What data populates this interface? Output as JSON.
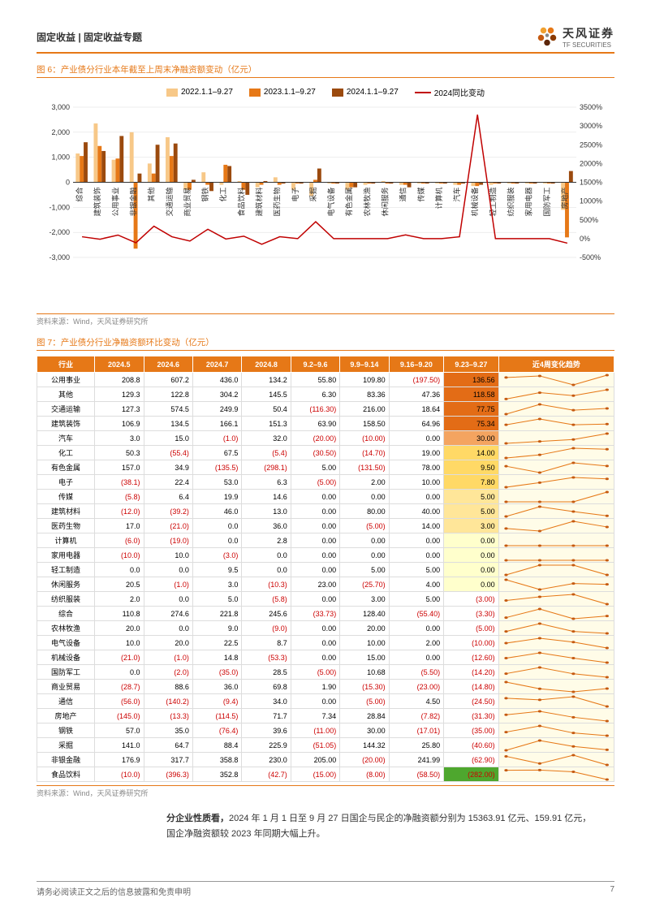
{
  "header": {
    "category": "固定收益 | 固定收益专题",
    "company_name": "天风证券",
    "company_sub": "TF SECURITIES"
  },
  "fig6": {
    "title": "图 6：产业债分行业本年截至上周末净融资额变动（亿元）",
    "source": "资料来源：Wind，天风证券研究所",
    "type": "bar-line-combo",
    "legend": [
      {
        "label": "2022.1.1–9.27",
        "color": "#f7c888"
      },
      {
        "label": "2023.1.1–9.27",
        "color": "#e67817"
      },
      {
        "label": "2024.1.1–9.27",
        "color": "#9b4a0e"
      },
      {
        "label": "2024同比变动",
        "color": "#c00000",
        "type": "line"
      }
    ],
    "y1_ticks": [
      -3000,
      -2000,
      -1000,
      0,
      1000,
      2000,
      3000
    ],
    "y2_ticks": [
      "-500%",
      "0%",
      "500%",
      "1000%",
      "1500%",
      "2000%",
      "2500%",
      "3000%",
      "3500%"
    ],
    "categories": [
      "综合",
      "建筑装饰",
      "公用事业",
      "非银金融",
      "其他",
      "交通运输",
      "商业贸易",
      "钢铁",
      "化工",
      "食品饮料",
      "建筑材料",
      "医药生物",
      "电子",
      "采掘",
      "电气设备",
      "有色金属",
      "农林牧渔",
      "休闲服务",
      "通信",
      "传媒",
      "计算机",
      "汽车",
      "机械设备",
      "轻工制造",
      "纺织服装",
      "家用电器",
      "国防军工",
      "房地产"
    ],
    "bars_2022": [
      1150,
      2350,
      900,
      2000,
      750,
      1800,
      -300,
      400,
      -100,
      50,
      -200,
      200,
      -300,
      -550,
      -50,
      -300,
      -100,
      50,
      -100,
      -50,
      -50,
      -100,
      -150,
      -100,
      -50,
      -50,
      -50,
      -1100
    ],
    "bars_2023": [
      1050,
      1450,
      950,
      -2650,
      350,
      1050,
      -300,
      -100,
      700,
      -300,
      -100,
      -100,
      -50,
      100,
      -50,
      -200,
      -50,
      -50,
      -100,
      -50,
      -50,
      -100,
      -150,
      -50,
      -50,
      -50,
      -50,
      -2200
    ],
    "bars_2024": [
      1600,
      1250,
      1850,
      350,
      1500,
      1550,
      100,
      -350,
      650,
      -500,
      50,
      -50,
      -50,
      550,
      -50,
      -200,
      -50,
      -50,
      -200,
      -50,
      -50,
      -50,
      -100,
      -50,
      -50,
      -50,
      -50,
      450
    ],
    "line_yoy_pct": [
      50,
      -15,
      95,
      -110,
      330,
      50,
      -65,
      250,
      -10,
      65,
      -150,
      50,
      0,
      450,
      0,
      0,
      0,
      0,
      100,
      0,
      0,
      50,
      3300,
      0,
      0,
      0,
      0,
      -120
    ],
    "y1_min": -3000,
    "y1_max": 3000,
    "y2_min": -500,
    "y2_max": 3500,
    "background_color": "#ffffff",
    "grid_color": "#dddddd",
    "bar_width": 0.22
  },
  "fig7": {
    "title": "图 7：产业债分行业净融资额环比变动（亿元）",
    "source": "资料来源：Wind，天风证券研究所",
    "columns": [
      "行业",
      "2024.5",
      "2024.6",
      "2024.7",
      "2024.8",
      "9.2–9.6",
      "9.9–9.14",
      "9.16–9.20",
      "9.23–9.27",
      "近4周变化趋势"
    ],
    "col_widths": [
      "10%",
      "8.5%",
      "8.5%",
      "8.5%",
      "8.5%",
      "8.5%",
      "8.5%",
      "9.5%",
      "9.5%",
      "20%"
    ],
    "last_col_gradient": {
      "max_color": "#e36c16",
      "mid_color": "#ffe699",
      "zero_color": "#ffffcc",
      "neg_color": "#ffffff",
      "min_color": "#4ea72e"
    },
    "spark_style": {
      "line_color": "#e67817",
      "point_color": "#c55a11",
      "bg_color": "#fffce8"
    },
    "rows": [
      {
        "name": "公用事业",
        "v": [
          208.8,
          607.2,
          436.0,
          134.2,
          55.8,
          109.8,
          -197.5,
          136.56
        ],
        "spark": [
          55.8,
          109.8,
          -197.5,
          136.56
        ]
      },
      {
        "name": "其他",
        "v": [
          129.3,
          122.8,
          304.2,
          145.5,
          6.3,
          83.36,
          47.36,
          118.58
        ],
        "spark": [
          6.3,
          83.36,
          47.36,
          118.58
        ]
      },
      {
        "name": "交通运输",
        "v": [
          127.3,
          574.5,
          249.9,
          50.4,
          -116.3,
          216.0,
          18.64,
          77.75
        ],
        "spark": [
          -116.3,
          216.0,
          18.64,
          77.75
        ]
      },
      {
        "name": "建筑装饰",
        "v": [
          106.9,
          134.5,
          166.1,
          151.3,
          63.9,
          158.5,
          64.96,
          75.34
        ],
        "spark": [
          63.9,
          158.5,
          64.96,
          75.34
        ]
      },
      {
        "name": "汽车",
        "v": [
          3.0,
          15.0,
          -1.0,
          32.0,
          -20.0,
          -10.0,
          0.0,
          30.0
        ],
        "spark": [
          -20.0,
          -10.0,
          0.0,
          30.0
        ]
      },
      {
        "name": "化工",
        "v": [
          50.3,
          -55.4,
          67.5,
          -5.4,
          -30.5,
          -14.7,
          19.0,
          14.0
        ],
        "spark": [
          -30.5,
          -14.7,
          19.0,
          14.0
        ]
      },
      {
        "name": "有色金属",
        "v": [
          157.0,
          34.9,
          -135.5,
          -298.1,
          5.0,
          -131.5,
          78.0,
          9.5
        ],
        "spark": [
          5.0,
          -131.5,
          78.0,
          9.5
        ]
      },
      {
        "name": "电子",
        "v": [
          -38.1,
          22.4,
          53.0,
          6.3,
          -5.0,
          2.0,
          10.0,
          7.8
        ],
        "spark": [
          -5.0,
          2.0,
          10.0,
          7.8
        ]
      },
      {
        "name": "传媒",
        "v": [
          -5.8,
          6.4,
          19.9,
          14.6,
          0.0,
          0.0,
          0.0,
          5.0
        ],
        "spark": [
          0.0,
          0.0,
          0.0,
          5.0
        ]
      },
      {
        "name": "建筑材料",
        "v": [
          -12.0,
          -39.2,
          46.0,
          13.0,
          0.0,
          80.0,
          40.0,
          5.0
        ],
        "spark": [
          0.0,
          80.0,
          40.0,
          5.0
        ]
      },
      {
        "name": "医药生物",
        "v": [
          17.0,
          -21.0,
          0.0,
          36.0,
          0.0,
          -5.0,
          14.0,
          3.0
        ],
        "spark": [
          0.0,
          -5.0,
          14.0,
          3.0
        ]
      },
      {
        "name": "计算机",
        "v": [
          -6.0,
          -19.0,
          0.0,
          2.8,
          0.0,
          0.0,
          0.0,
          0.0
        ],
        "spark": [
          0.0,
          0.0,
          0.0,
          0.0
        ]
      },
      {
        "name": "家用电器",
        "v": [
          -10.0,
          10.0,
          -3.0,
          0.0,
          0.0,
          0.0,
          0.0,
          0.0
        ],
        "spark": [
          0.0,
          0.0,
          0.0,
          0.0
        ]
      },
      {
        "name": "轻工制造",
        "v": [
          0.0,
          0.0,
          9.5,
          0.0,
          0.0,
          5.0,
          5.0,
          0.0
        ],
        "spark": [
          0.0,
          5.0,
          5.0,
          0.0
        ]
      },
      {
        "name": "休闲服务",
        "v": [
          20.5,
          -1.0,
          3.0,
          -10.3,
          23.0,
          -25.7,
          4.0,
          0.0
        ],
        "spark": [
          23.0,
          -25.7,
          4.0,
          0.0
        ]
      },
      {
        "name": "纺织服装",
        "v": [
          2.0,
          0.0,
          5.0,
          -5.8,
          0.0,
          3.0,
          5.0,
          -3.0
        ],
        "spark": [
          0.0,
          3.0,
          5.0,
          -3.0
        ]
      },
      {
        "name": "综合",
        "v": [
          110.8,
          274.6,
          221.8,
          245.6,
          -33.73,
          128.4,
          -55.4,
          -3.3
        ],
        "spark": [
          -33.73,
          128.4,
          -55.4,
          -3.3
        ]
      },
      {
        "name": "农林牧渔",
        "v": [
          20.0,
          0.0,
          9.0,
          -9.0,
          0.0,
          20.0,
          0.0,
          -5.0
        ],
        "spark": [
          0.0,
          20.0,
          0.0,
          -5.0
        ]
      },
      {
        "name": "电气设备",
        "v": [
          10.0,
          20.0,
          22.5,
          8.7,
          0.0,
          10.0,
          2.0,
          -10.0
        ],
        "spark": [
          0.0,
          10.0,
          2.0,
          -10.0
        ]
      },
      {
        "name": "机械设备",
        "v": [
          -21.0,
          -1.0,
          14.8,
          -53.3,
          0.0,
          15.0,
          0.0,
          -12.6
        ],
        "spark": [
          0.0,
          15.0,
          0.0,
          -12.6
        ]
      },
      {
        "name": "国防军工",
        "v": [
          0.0,
          -2.0,
          -35.0,
          28.5,
          -5.0,
          10.68,
          -5.5,
          -14.2
        ],
        "spark": [
          -5.0,
          10.68,
          -5.5,
          -14.2
        ]
      },
      {
        "name": "商业贸易",
        "v": [
          -28.7,
          88.6,
          36.0,
          69.8,
          1.9,
          -15.3,
          -23.0,
          -14.8
        ],
        "spark": [
          1.9,
          -15.3,
          -23.0,
          -14.8
        ]
      },
      {
        "name": "通信",
        "v": [
          -56.0,
          -140.2,
          -9.4,
          34.0,
          0.0,
          -5.0,
          4.5,
          -24.5
        ],
        "spark": [
          0.0,
          -5.0,
          4.5,
          -24.5
        ]
      },
      {
        "name": "房地产",
        "v": [
          -145.0,
          -13.3,
          -114.5,
          71.7,
          7.34,
          28.84,
          -7.82,
          -31.3
        ],
        "spark": [
          7.34,
          28.84,
          -7.82,
          -31.3
        ]
      },
      {
        "name": "钢铁",
        "v": [
          57.0,
          35.0,
          -76.4,
          39.6,
          -11.0,
          30.0,
          -17.01,
          -35.0
        ],
        "spark": [
          -11.0,
          30.0,
          -17.01,
          -35.0
        ]
      },
      {
        "name": "采掘",
        "v": [
          141.0,
          64.7,
          88.4,
          225.9,
          -51.05,
          144.32,
          25.8,
          -40.6
        ],
        "spark": [
          -51.05,
          144.32,
          25.8,
          -40.6
        ]
      },
      {
        "name": "非银金融",
        "v": [
          176.9,
          317.7,
          358.8,
          230.0,
          205.0,
          -20.0,
          241.99,
          -62.9
        ],
        "spark": [
          205.0,
          -20.0,
          241.99,
          -62.9
        ]
      },
      {
        "name": "食品饮料",
        "v": [
          -10.0,
          -396.3,
          352.8,
          -42.7,
          -15.0,
          -8.0,
          -58.5,
          -282.0
        ],
        "spark": [
          -15.0,
          -8.0,
          -58.5,
          -282.0
        ]
      }
    ]
  },
  "body_text": {
    "prefix_bold": "分企业性质看，",
    "content": "2024 年 1 月 1 日至 9 月 27 日国企与民企的净融资额分别为 15363.91 亿元、159.91 亿元，国企净融资额较 2023 年同期大幅上升。"
  },
  "footer": {
    "disclaimer": "请务必阅读正文之后的信息披露和免责申明",
    "page": "7"
  }
}
